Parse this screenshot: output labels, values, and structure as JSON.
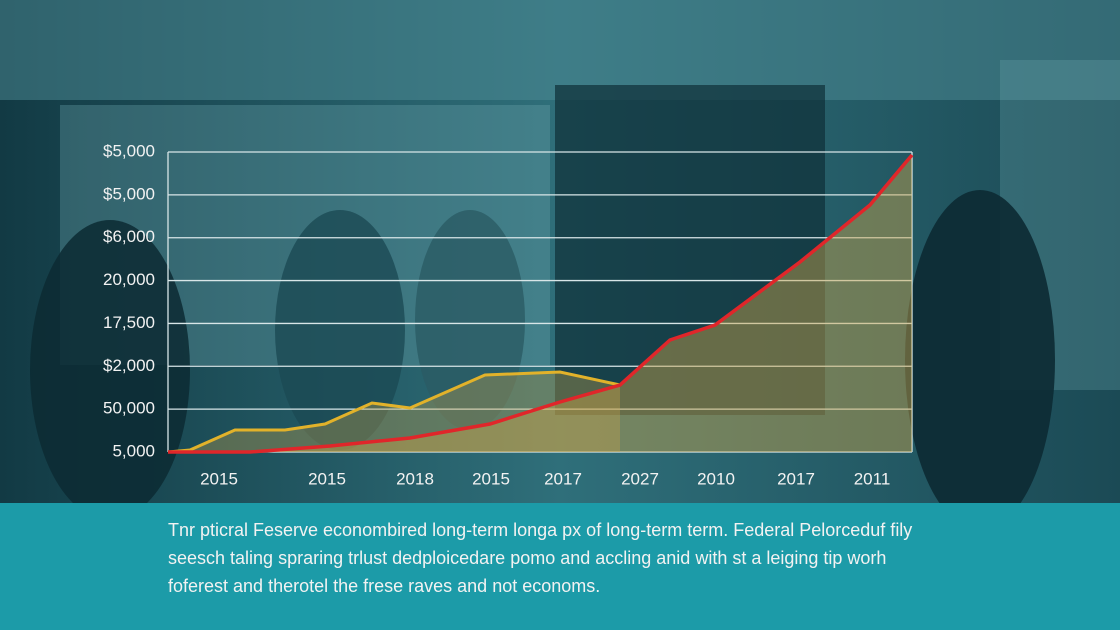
{
  "chart": {
    "y_labels": [
      "$5,000",
      "$5,000",
      "$6,000",
      "20,000",
      "17,500",
      "$2,000",
      "50,000",
      "5,000"
    ],
    "x_labels": [
      "2015",
      "2015",
      "2018",
      "2015",
      "2017",
      "2027",
      "2010",
      "2017",
      "2011"
    ]
  },
  "caption": [
    "Tnr pticral Feserve econombired long-term longa px of long-term term. Federal Pelorceduf fily",
    "seesch taling spraring trlust dedploicedare pomo and accling anid with st a leiging tip worh",
    "foferest and therotel the frese raves and not economs."
  ]
}
